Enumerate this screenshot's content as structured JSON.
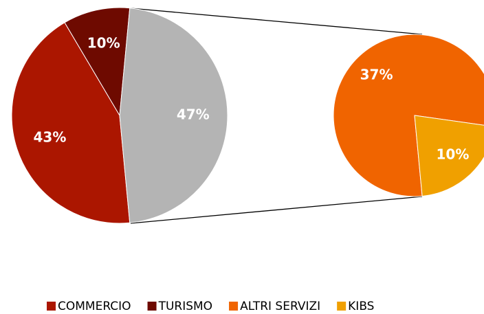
{
  "chart_data": [
    {
      "type": "pie",
      "categories": [
        "COMMERCIO",
        "TURISMO",
        null
      ],
      "values": [
        43,
        10,
        47
      ],
      "value_labels": [
        "43%",
        "10%",
        "47%"
      ],
      "colors": [
        "#ab1600",
        "#6e0a00",
        "#b4b4b4"
      ]
    },
    {
      "type": "pie",
      "categories": [
        "ALTRI SERVIZI",
        "KIBS"
      ],
      "values": [
        37,
        10
      ],
      "value_labels": [
        "37%",
        "10%"
      ],
      "colors": [
        "#f06400",
        "#f0a000"
      ]
    }
  ]
}
